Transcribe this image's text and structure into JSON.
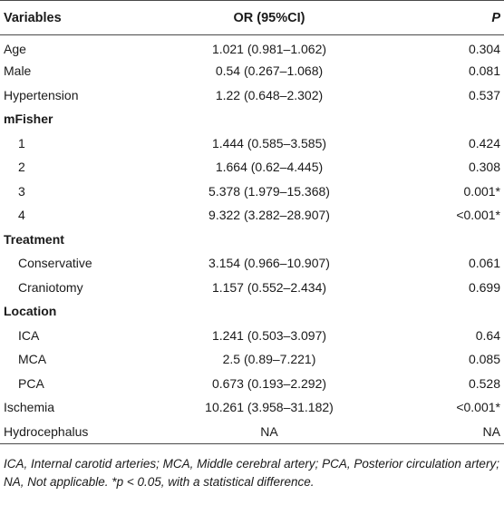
{
  "header": {
    "variables": "Variables",
    "or": "OR (95%CI)",
    "p": "P"
  },
  "rows": [
    {
      "type": "row",
      "label": "Age",
      "or": "1.021 (0.981–1.062)",
      "p": "0.304"
    },
    {
      "type": "row",
      "label": "Male",
      "or": "0.54 (0.267–1.068)",
      "p": "0.081"
    },
    {
      "type": "row",
      "label": "Hypertension",
      "or": "1.22 (0.648–2.302)",
      "p": "0.537"
    },
    {
      "type": "section",
      "label": "mFisher"
    },
    {
      "type": "sub",
      "label": "1",
      "or": "1.444 (0.585–3.585)",
      "p": "0.424"
    },
    {
      "type": "sub",
      "label": "2",
      "or": "1.664 (0.62–4.445)",
      "p": "0.308"
    },
    {
      "type": "sub",
      "label": "3",
      "or": "5.378 (1.979–15.368)",
      "p": "0.001*"
    },
    {
      "type": "sub",
      "label": "4",
      "or": "9.322 (3.282–28.907)",
      "p": "<0.001*"
    },
    {
      "type": "section",
      "label": "Treatment"
    },
    {
      "type": "sub",
      "label": "Conservative",
      "or": "3.154 (0.966–10.907)",
      "p": "0.061"
    },
    {
      "type": "sub",
      "label": "Craniotomy",
      "or": "1.157 (0.552–2.434)",
      "p": "0.699"
    },
    {
      "type": "section",
      "label": "Location"
    },
    {
      "type": "sub",
      "label": "ICA",
      "or": "1.241 (0.503–3.097)",
      "p": "0.64"
    },
    {
      "type": "sub",
      "label": "MCA",
      "or": "2.5 (0.89–7.221)",
      "p": "0.085"
    },
    {
      "type": "sub",
      "label": "PCA",
      "or": "0.673 (0.193–2.292)",
      "p": "0.528"
    },
    {
      "type": "row",
      "label": "Ischemia",
      "or": "10.261 (3.958–31.182)",
      "p": "<0.001*"
    },
    {
      "type": "row",
      "label": "Hydrocephalus",
      "or": "NA",
      "p": "NA"
    }
  ],
  "footnote": "ICA, Internal carotid arteries; MCA, Middle cerebral artery; PCA, Posterior circulation artery; NA, Not applicable. *p < 0.05, with a statistical difference."
}
